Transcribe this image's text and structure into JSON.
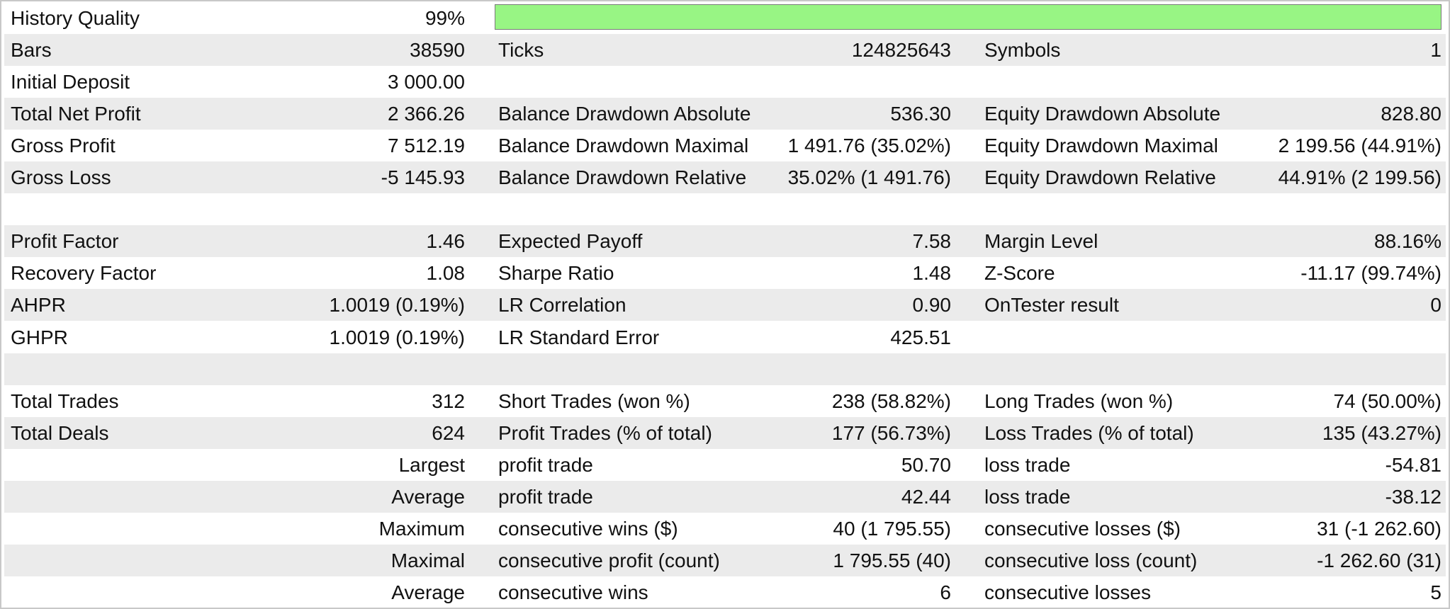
{
  "table": {
    "rows": [
      [
        "History Quality",
        "99%"
      ],
      [
        "Bars",
        "38590",
        "Ticks",
        "124825643",
        "Symbols",
        "1"
      ],
      [
        "Initial Deposit",
        "3 000.00"
      ],
      [
        "Total Net Profit",
        "2 366.26",
        "Balance Drawdown Absolute",
        "536.30",
        "Equity Drawdown Absolute",
        "828.80"
      ],
      [
        "Gross Profit",
        "7 512.19",
        "Balance Drawdown Maximal",
        "1 491.76 (35.02%)",
        "Equity Drawdown Maximal",
        "2 199.56 (44.91%)"
      ],
      [
        "Gross Loss",
        "-5 145.93",
        "Balance Drawdown Relative",
        "35.02% (1 491.76)",
        "Equity Drawdown Relative",
        "44.91% (2 199.56)"
      ],
      [],
      [
        "Profit Factor",
        "1.46",
        "Expected Payoff",
        "7.58",
        "Margin Level",
        "88.16%"
      ],
      [
        "Recovery Factor",
        "1.08",
        "Sharpe Ratio",
        "1.48",
        "Z-Score",
        "-11.17 (99.74%)"
      ],
      [
        "AHPR",
        "1.0019 (0.19%)",
        "LR Correlation",
        "0.90",
        "OnTester result",
        "0"
      ],
      [
        "GHPR",
        "1.0019 (0.19%)",
        "LR Standard Error",
        "425.51"
      ],
      [],
      [
        "Total Trades",
        "312",
        "Short Trades (won %)",
        "238 (58.82%)",
        "Long Trades (won %)",
        "74 (50.00%)"
      ],
      [
        "Total Deals",
        "624",
        "Profit Trades (% of total)",
        "177 (56.73%)",
        "Loss Trades (% of total)",
        "135 (43.27%)"
      ],
      [
        null,
        "Largest",
        "profit trade",
        "50.70",
        "loss trade",
        "-54.81"
      ],
      [
        null,
        "Average",
        "profit trade",
        "42.44",
        "loss trade",
        "-38.12"
      ],
      [
        null,
        "Maximum",
        "consecutive wins ($)",
        "40 (1 795.55)",
        "consecutive losses ($)",
        "31 (-1 262.60)"
      ],
      [
        null,
        "Maximal",
        "consecutive profit (count)",
        "1 795.55 (40)",
        "consecutive loss (count)",
        "-1 262.60 (31)"
      ],
      [
        null,
        "Average",
        "consecutive wins",
        "6",
        "consecutive losses",
        "5"
      ]
    ]
  }
}
